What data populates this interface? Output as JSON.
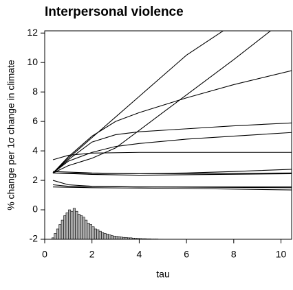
{
  "chart_data": {
    "type": "line",
    "title": "Interpersonal violence",
    "xlabel": "tau",
    "ylabel": "% change per 1σ change in climate",
    "xlim": [
      0,
      10.45
    ],
    "ylim": [
      -2,
      12.15
    ],
    "xticks": [
      0,
      2,
      4,
      6,
      8,
      10
    ],
    "yticks": [
      -2,
      0,
      2,
      4,
      6,
      8,
      10,
      12
    ],
    "color": "#000000",
    "series": [
      {
        "x": [
          0.35,
          1,
          2,
          3,
          4,
          6,
          7.6
        ],
        "values": [
          2.5,
          3.5,
          4.9,
          6.3,
          7.7,
          10.5,
          12.2
        ]
      },
      {
        "x": [
          0.35,
          1,
          2,
          3,
          4,
          5,
          6,
          8,
          9.6
        ],
        "values": [
          2.5,
          3.0,
          3.5,
          4.2,
          5.4,
          6.6,
          7.8,
          10.2,
          12.2
        ]
      },
      {
        "x": [
          0.35,
          1,
          2,
          3,
          4,
          6,
          8,
          10.45
        ],
        "values": [
          2.5,
          3.6,
          5.0,
          6.0,
          6.6,
          7.6,
          8.5,
          9.45
        ]
      },
      {
        "x": [
          0.35,
          1,
          2,
          3,
          4,
          6,
          8,
          10.45
        ],
        "values": [
          2.5,
          3.4,
          4.6,
          5.1,
          5.3,
          5.5,
          5.7,
          5.9
        ]
      },
      {
        "x": [
          0.35,
          1,
          2,
          3,
          4,
          6,
          8,
          10.45
        ],
        "values": [
          2.5,
          3.3,
          3.9,
          4.3,
          4.5,
          4.8,
          5.0,
          5.25
        ]
      },
      {
        "x": [
          0.35,
          1,
          2,
          4,
          10.45
        ],
        "values": [
          3.4,
          3.7,
          3.85,
          3.9,
          3.9
        ]
      },
      {
        "x": [
          0.35,
          2,
          4,
          6,
          8,
          10.45
        ],
        "values": [
          2.6,
          2.5,
          2.45,
          2.5,
          2.6,
          2.75
        ]
      },
      {
        "x": [
          0.35,
          4,
          10.45
        ],
        "values": [
          2.5,
          2.45,
          2.5
        ]
      },
      {
        "x": [
          0.35,
          2,
          4,
          10.45
        ],
        "values": [
          2.5,
          2.4,
          2.35,
          2.45
        ]
      },
      {
        "x": [
          0.35,
          1,
          2,
          4,
          10.45
        ],
        "values": [
          2.0,
          1.7,
          1.6,
          1.55,
          1.5
        ]
      },
      {
        "x": [
          0.35,
          1,
          4,
          10.45
        ],
        "values": [
          1.7,
          1.6,
          1.55,
          1.55
        ]
      },
      {
        "x": [
          0.35,
          2,
          6,
          10.45
        ],
        "values": [
          1.55,
          1.5,
          1.45,
          1.35
        ]
      }
    ],
    "histogram": {
      "color": "#b0b0b0",
      "bins": [
        0.3,
        0.4,
        0.5,
        0.6,
        0.7,
        0.8,
        0.9,
        1.0,
        1.1,
        1.2,
        1.3,
        1.4,
        1.5,
        1.6,
        1.7,
        1.8,
        1.9,
        2.0,
        2.1,
        2.2,
        2.3,
        2.4,
        2.5,
        2.6,
        2.7,
        2.8,
        2.9,
        3.0,
        3.1,
        3.2,
        3.3,
        3.4,
        3.5,
        3.6,
        3.7,
        3.8,
        3.9,
        4.0,
        4.1,
        4.2,
        4.3,
        4.4,
        4.5,
        4.6,
        4.7,
        4.8,
        4.9,
        5.0
      ],
      "values": [
        -1.9,
        -1.6,
        -1.3,
        -1.0,
        -0.7,
        -0.4,
        -0.2,
        0.0,
        -0.1,
        0.1,
        -0.1,
        -0.3,
        -0.4,
        -0.5,
        -0.7,
        -0.9,
        -1.0,
        -1.15,
        -1.3,
        -1.35,
        -1.45,
        -1.55,
        -1.6,
        -1.65,
        -1.7,
        -1.75,
        -1.78,
        -1.8,
        -1.82,
        -1.85,
        -1.87,
        -1.88,
        -1.9,
        -1.9,
        -1.92,
        -1.93,
        -1.94,
        -1.95,
        -1.96,
        -1.96,
        -1.97,
        -1.97,
        -1.98,
        -1.98,
        -1.98,
        -1.99,
        -1.99
      ]
    }
  }
}
